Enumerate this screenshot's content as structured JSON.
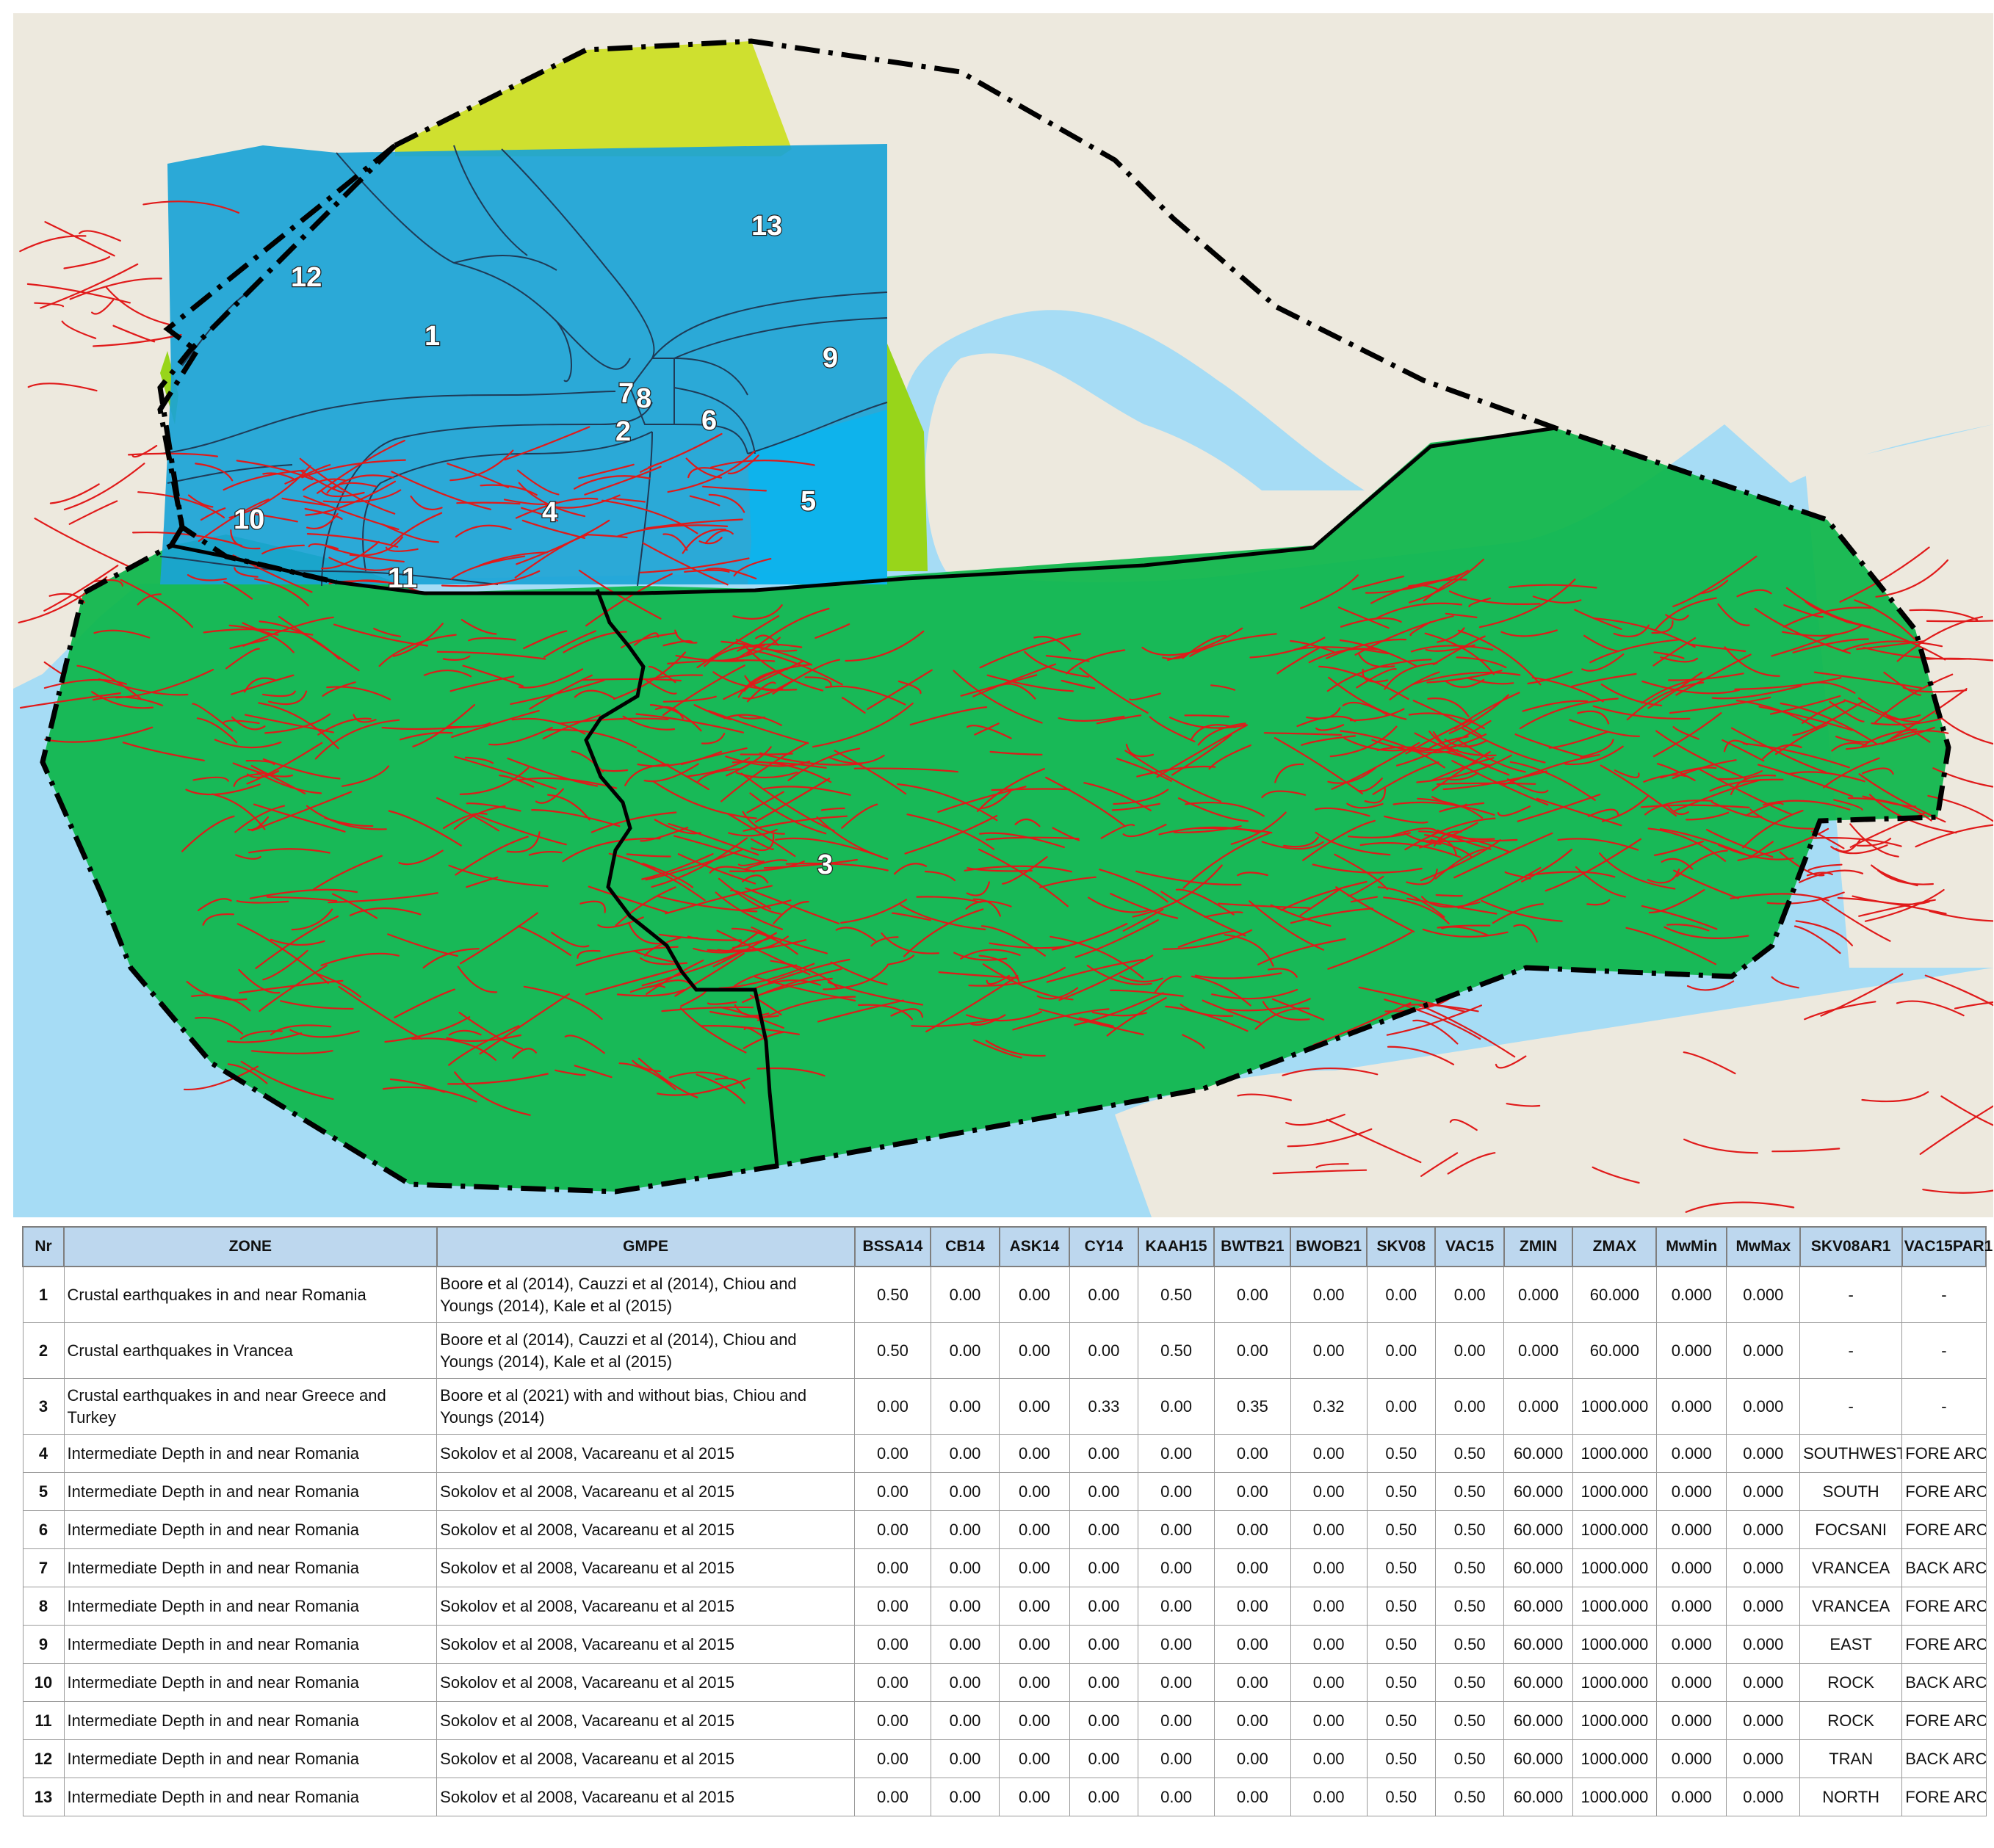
{
  "colors": {
    "sea": "#a6dcf5",
    "land": "#ede9de",
    "zone_green": "#0db64a",
    "zone_blue": "#1aa3d6",
    "zone_blue_light": "#09b5f0",
    "zone_yellow": "#cfe02f",
    "zone_lime": "#98d51a",
    "fault": "#e01a1a",
    "boundary": "#000000"
  },
  "map": {
    "zone_labels": [
      "1",
      "2",
      "3",
      "4",
      "5",
      "6",
      "7",
      "8",
      "9",
      "10",
      "11",
      "12",
      "13"
    ],
    "icons": [
      "fault-line-icon",
      "zone-boundary-icon"
    ]
  },
  "table": {
    "headers": [
      "Nr",
      "ZONE",
      "GMPE",
      "BSSA14",
      "CB14",
      "ASK14",
      "CY14",
      "KAAH15",
      "BWTB21",
      "BWOB21",
      "SKV08",
      "VAC15",
      "ZMIN",
      "ZMAX",
      "MwMin",
      "MwMax",
      "SKV08AR1",
      "VAC15PAR1"
    ],
    "rows": [
      [
        "1",
        "Crustal earthquakes in and near Romania",
        "Boore et al (2014), Cauzzi et al (2014), Chiou and Youngs (2014), Kale et al (2015)",
        "0.50",
        "0.00",
        "0.00",
        "0.00",
        "0.50",
        "0.00",
        "0.00",
        "0.00",
        "0.00",
        "0.000",
        "60.000",
        "0.000",
        "0.000",
        "-",
        "-"
      ],
      [
        "2",
        "Crustal earthquakes in Vrancea",
        "Boore et al (2014), Cauzzi et al (2014), Chiou and Youngs (2014), Kale et al (2015)",
        "0.50",
        "0.00",
        "0.00",
        "0.00",
        "0.50",
        "0.00",
        "0.00",
        "0.00",
        "0.00",
        "0.000",
        "60.000",
        "0.000",
        "0.000",
        "-",
        "-"
      ],
      [
        "3",
        "Crustal earthquakes in and near Greece and Turkey",
        "Boore et al (2021) with and without bias, Chiou and Youngs (2014)",
        "0.00",
        "0.00",
        "0.00",
        "0.33",
        "0.00",
        "0.35",
        "0.32",
        "0.00",
        "0.00",
        "0.000",
        "1000.000",
        "0.000",
        "0.000",
        "-",
        "-"
      ],
      [
        "4",
        "Intermediate Depth in and near Romania",
        "Sokolov et al 2008, Vacareanu et al 2015",
        "0.00",
        "0.00",
        "0.00",
        "0.00",
        "0.00",
        "0.00",
        "0.00",
        "0.50",
        "0.50",
        "60.000",
        "1000.000",
        "0.000",
        "0.000",
        "SOUTHWEST",
        "FORE ARC"
      ],
      [
        "5",
        "Intermediate Depth in and near Romania",
        "Sokolov et al 2008, Vacareanu et al 2015",
        "0.00",
        "0.00",
        "0.00",
        "0.00",
        "0.00",
        "0.00",
        "0.00",
        "0.50",
        "0.50",
        "60.000",
        "1000.000",
        "0.000",
        "0.000",
        "SOUTH",
        "FORE ARC"
      ],
      [
        "6",
        "Intermediate Depth in and near Romania",
        "Sokolov et al 2008, Vacareanu et al 2015",
        "0.00",
        "0.00",
        "0.00",
        "0.00",
        "0.00",
        "0.00",
        "0.00",
        "0.50",
        "0.50",
        "60.000",
        "1000.000",
        "0.000",
        "0.000",
        "FOCSANI",
        "FORE ARC"
      ],
      [
        "7",
        "Intermediate Depth in and near Romania",
        "Sokolov et al 2008, Vacareanu et al 2015",
        "0.00",
        "0.00",
        "0.00",
        "0.00",
        "0.00",
        "0.00",
        "0.00",
        "0.50",
        "0.50",
        "60.000",
        "1000.000",
        "0.000",
        "0.000",
        "VRANCEA",
        "BACK ARC"
      ],
      [
        "8",
        "Intermediate Depth in and near Romania",
        "Sokolov et al 2008, Vacareanu et al 2015",
        "0.00",
        "0.00",
        "0.00",
        "0.00",
        "0.00",
        "0.00",
        "0.00",
        "0.50",
        "0.50",
        "60.000",
        "1000.000",
        "0.000",
        "0.000",
        "VRANCEA",
        "FORE ARC"
      ],
      [
        "9",
        "Intermediate Depth in and near Romania",
        "Sokolov et al 2008, Vacareanu et al 2015",
        "0.00",
        "0.00",
        "0.00",
        "0.00",
        "0.00",
        "0.00",
        "0.00",
        "0.50",
        "0.50",
        "60.000",
        "1000.000",
        "0.000",
        "0.000",
        "EAST",
        "FORE ARC"
      ],
      [
        "10",
        "Intermediate Depth in and near Romania",
        "Sokolov et al 2008, Vacareanu et al 2015",
        "0.00",
        "0.00",
        "0.00",
        "0.00",
        "0.00",
        "0.00",
        "0.00",
        "0.50",
        "0.50",
        "60.000",
        "1000.000",
        "0.000",
        "0.000",
        "ROCK",
        "BACK ARC"
      ],
      [
        "11",
        "Intermediate Depth in and near Romania",
        "Sokolov et al 2008, Vacareanu et al 2015",
        "0.00",
        "0.00",
        "0.00",
        "0.00",
        "0.00",
        "0.00",
        "0.00",
        "0.50",
        "0.50",
        "60.000",
        "1000.000",
        "0.000",
        "0.000",
        "ROCK",
        "FORE ARC"
      ],
      [
        "12",
        "Intermediate Depth in and near Romania",
        "Sokolov et al 2008, Vacareanu et al 2015",
        "0.00",
        "0.00",
        "0.00",
        "0.00",
        "0.00",
        "0.00",
        "0.00",
        "0.50",
        "0.50",
        "60.000",
        "1000.000",
        "0.000",
        "0.000",
        "TRAN",
        "BACK ARC"
      ],
      [
        "13",
        "Intermediate Depth in and near Romania",
        "Sokolov et al 2008, Vacareanu et al 2015",
        "0.00",
        "0.00",
        "0.00",
        "0.00",
        "0.00",
        "0.00",
        "0.00",
        "0.50",
        "0.50",
        "60.000",
        "1000.000",
        "0.000",
        "0.000",
        "NORTH",
        "FORE ARC"
      ]
    ]
  }
}
